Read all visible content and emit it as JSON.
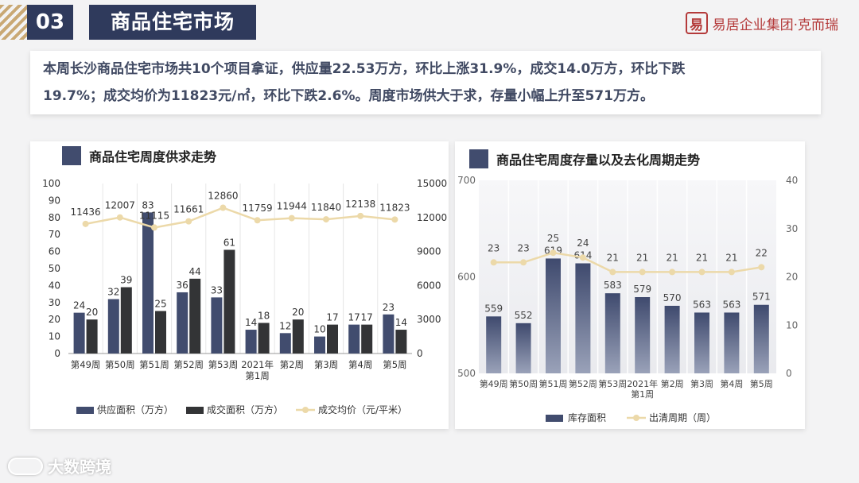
{
  "header": {
    "section_number": "03",
    "section_title": "商品住宅市场",
    "brand_seal": "易",
    "brand_name": "易居企业集团·克而瑞"
  },
  "summary": {
    "line1": "本周长沙商品住宅市场共10个项目拿证，供应量22.53万方，环比上涨31.9%，成交14.0万方，环比下跌",
    "line2": "19.7%；成交均价为11823元/㎡，环比下跌2.6%。周度市场供大于求，存量小幅上升至571万方。"
  },
  "footer": {
    "watermark": "大数跨境"
  },
  "colors": {
    "navy": "#2f3a5c",
    "bar_blue": "#414c6e",
    "bar_dark": "#333436",
    "line_gold": "#ecd9a9",
    "grid": "#e6e6e6"
  },
  "chart_data": [
    {
      "type": "bar",
      "title": "商品住宅周度供求走势",
      "categories": [
        "第49周",
        "第50周",
        "第51周",
        "第52周",
        "第53周",
        "2021年\n第1周",
        "第2周",
        "第3周",
        "第4周",
        "第5周"
      ],
      "series": [
        {
          "name": "供应面积（万方）",
          "kind": "bar",
          "axis": "left",
          "values": [
            24,
            32,
            83,
            36,
            33,
            14,
            12,
            10,
            17,
            23
          ]
        },
        {
          "name": "成交面积（万方）",
          "kind": "bar",
          "axis": "left",
          "values": [
            20,
            39,
            25,
            44,
            61,
            18,
            20,
            17,
            17,
            14
          ]
        },
        {
          "name": "成交均价（元/平米）",
          "kind": "line",
          "axis": "right",
          "values": [
            11436,
            12007,
            11115,
            11661,
            12860,
            11759,
            11944,
            11840,
            12138,
            11823
          ]
        }
      ],
      "y_left": {
        "min": 0,
        "max": 100,
        "ticks": [
          0,
          10,
          20,
          30,
          40,
          50,
          60,
          70,
          80,
          90,
          100
        ]
      },
      "y_right": {
        "min": 0,
        "max": 15000,
        "ticks": [
          0,
          3000,
          6000,
          9000,
          12000,
          15000
        ]
      },
      "legend": "bottom"
    },
    {
      "type": "bar",
      "title": "商品住宅周度存量以及去化周期走势",
      "categories": [
        "第49周",
        "第50周",
        "第51周",
        "第52周",
        "第53周",
        "2021年\n第1周",
        "第2周",
        "第3周",
        "第4周",
        "第5周"
      ],
      "series": [
        {
          "name": "库存面积",
          "kind": "bar",
          "axis": "left",
          "values": [
            559,
            552,
            619,
            614,
            583,
            579,
            570,
            563,
            563,
            571
          ]
        },
        {
          "name": "出清周期（周）",
          "kind": "line",
          "axis": "right",
          "values": [
            23,
            23,
            25,
            24,
            21,
            21,
            21,
            21,
            21,
            22
          ]
        }
      ],
      "y_left": {
        "min": 500,
        "max": 700,
        "ticks": [
          500,
          600,
          700
        ]
      },
      "y_right": {
        "min": 0,
        "max": 40,
        "ticks": [
          0,
          10,
          20,
          30,
          40
        ]
      },
      "legend": "bottom"
    }
  ]
}
